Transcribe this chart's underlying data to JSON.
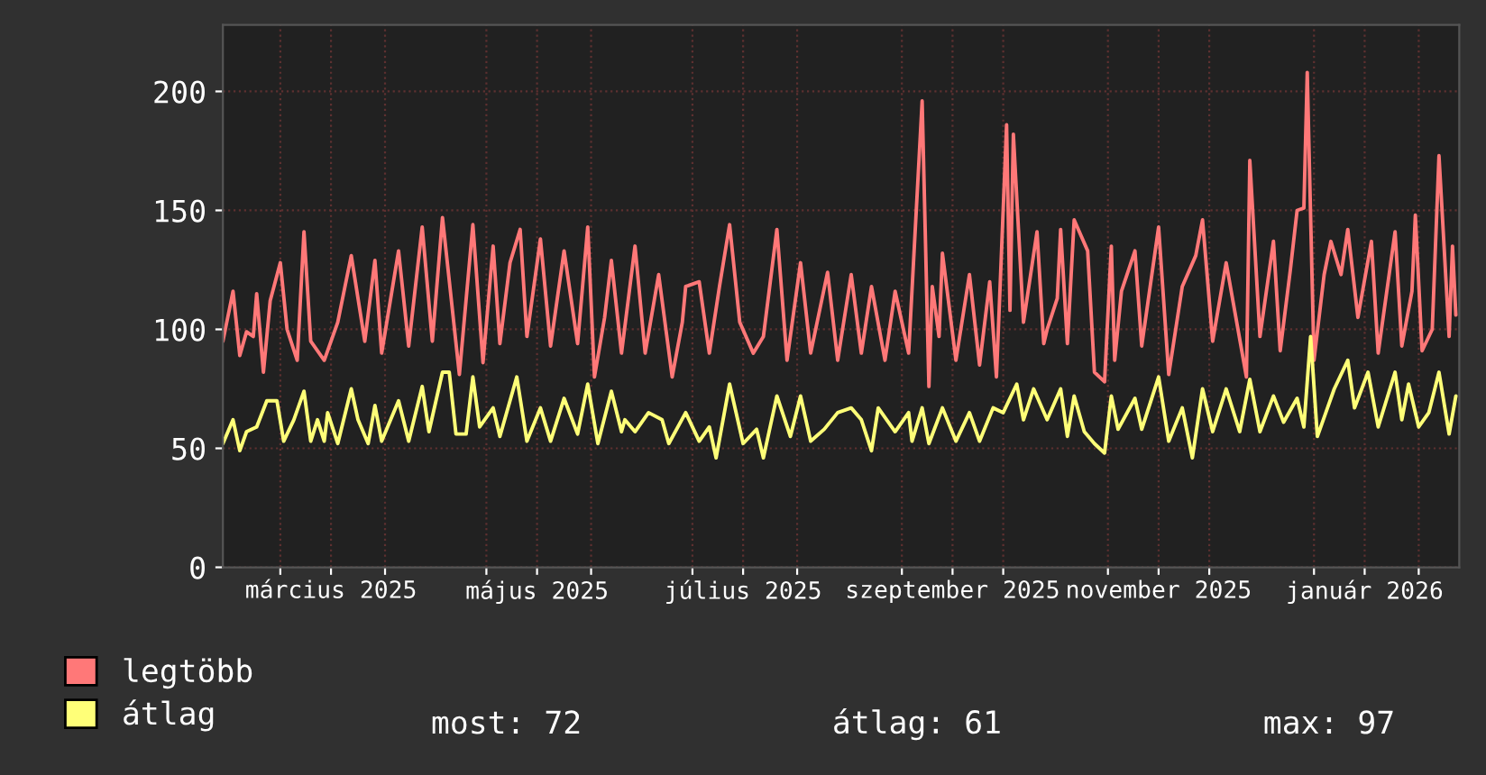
{
  "chart_data": {
    "type": "line",
    "xlim": [
      "2025-02-12",
      "2026-02-13"
    ],
    "ylim": [
      0,
      228
    ],
    "yticks": [
      0,
      50,
      100,
      150,
      200
    ],
    "xticks": [
      {
        "value": "2025-03-01",
        "label": null
      },
      {
        "value": "2025-03-16",
        "label": "március 2025"
      },
      {
        "value": "2025-04-01",
        "label": null
      },
      {
        "value": "2025-05-01",
        "label": null
      },
      {
        "value": "2025-05-16",
        "label": "május 2025"
      },
      {
        "value": "2025-06-01",
        "label": null
      },
      {
        "value": "2025-07-01",
        "label": null
      },
      {
        "value": "2025-07-16",
        "label": "július 2025"
      },
      {
        "value": "2025-08-01",
        "label": null
      },
      {
        "value": "2025-09-01",
        "label": null
      },
      {
        "value": "2025-09-16",
        "label": "szeptember 2025"
      },
      {
        "value": "2025-10-01",
        "label": null
      },
      {
        "value": "2025-11-01",
        "label": null
      },
      {
        "value": "2025-11-16",
        "label": "november 2025"
      },
      {
        "value": "2025-12-01",
        "label": null
      },
      {
        "value": "2026-01-01",
        "label": null
      },
      {
        "value": "2026-01-16",
        "label": "január 2026"
      },
      {
        "value": "2026-02-01",
        "label": null
      }
    ],
    "grid": true,
    "legend": "bottom left",
    "line_style": "solid",
    "annotations": [
      "most: 72",
      "átlag: 61",
      "max: 97"
    ],
    "series": [
      {
        "name": "legtöbb",
        "color": "#ff7878",
        "x": [
          "2025-02-12",
          "2025-02-15",
          "2025-02-17",
          "2025-02-19",
          "2025-02-21",
          "2025-02-22",
          "2025-02-24",
          "2025-02-26",
          "2025-03-01",
          "2025-03-03",
          "2025-03-06",
          "2025-03-08",
          "2025-03-10",
          "2025-03-14",
          "2025-03-18",
          "2025-03-22",
          "2025-03-26",
          "2025-03-29",
          "2025-03-31",
          "2025-04-05",
          "2025-04-08",
          "2025-04-12",
          "2025-04-15",
          "2025-04-18",
          "2025-04-23",
          "2025-04-27",
          "2025-04-30",
          "2025-05-03",
          "2025-05-05",
          "2025-05-08",
          "2025-05-11",
          "2025-05-13",
          "2025-05-17",
          "2025-05-20",
          "2025-05-24",
          "2025-05-28",
          "2025-05-31",
          "2025-06-02",
          "2025-06-05",
          "2025-06-07",
          "2025-06-10",
          "2025-06-14",
          "2025-06-17",
          "2025-06-21",
          "2025-06-25",
          "2025-06-28",
          "2025-06-29",
          "2025-07-03",
          "2025-07-06",
          "2025-07-09",
          "2025-07-12",
          "2025-07-15",
          "2025-07-19",
          "2025-07-22",
          "2025-07-26",
          "2025-07-29",
          "2025-08-02",
          "2025-08-05",
          "2025-08-10",
          "2025-08-13",
          "2025-08-17",
          "2025-08-20",
          "2025-08-23",
          "2025-08-27",
          "2025-08-30",
          "2025-09-03",
          "2025-09-07",
          "2025-09-09",
          "2025-09-10",
          "2025-09-12",
          "2025-09-13",
          "2025-09-17",
          "2025-09-21",
          "2025-09-24",
          "2025-09-27",
          "2025-09-29",
          "2025-10-02",
          "2025-10-03",
          "2025-10-04",
          "2025-10-07",
          "2025-10-11",
          "2025-10-13",
          "2025-10-14",
          "2025-10-17",
          "2025-10-18",
          "2025-10-20",
          "2025-10-22",
          "2025-10-26",
          "2025-10-28",
          "2025-10-31",
          "2025-11-02",
          "2025-11-03",
          "2025-11-05",
          "2025-11-09",
          "2025-11-11",
          "2025-11-16",
          "2025-11-19",
          "2025-11-23",
          "2025-11-27",
          "2025-11-29",
          "2025-12-02",
          "2025-12-06",
          "2025-12-12",
          "2025-12-13",
          "2025-12-16",
          "2025-12-20",
          "2025-12-22",
          "2025-12-25",
          "2025-12-27",
          "2025-12-29",
          "2025-12-30",
          "2026-01-01",
          "2026-01-04",
          "2026-01-06",
          "2026-01-09",
          "2026-01-11",
          "2026-01-14",
          "2026-01-18",
          "2026-01-20",
          "2026-01-25",
          "2026-01-27",
          "2026-01-30",
          "2026-01-31",
          "2026-02-02",
          "2026-02-05",
          "2026-02-07",
          "2026-02-10",
          "2026-02-11",
          "2026-02-12"
        ],
        "values": [
          95,
          116,
          89,
          99,
          97,
          115,
          82,
          112,
          128,
          100,
          87,
          141,
          95,
          87,
          103,
          131,
          95,
          129,
          90,
          133,
          93,
          143,
          95,
          147,
          81,
          144,
          86,
          135,
          94,
          128,
          142,
          97,
          138,
          93,
          133,
          94,
          143,
          80,
          105,
          129,
          90,
          135,
          90,
          123,
          80,
          103,
          118,
          120,
          90,
          118,
          144,
          103,
          90,
          97,
          142,
          87,
          128,
          90,
          124,
          87,
          123,
          90,
          118,
          87,
          116,
          90,
          196,
          76,
          118,
          97,
          132,
          87,
          123,
          85,
          120,
          80,
          186,
          108,
          182,
          103,
          141,
          94,
          100,
          113,
          142,
          94,
          146,
          133,
          82,
          78,
          135,
          87,
          116,
          133,
          93,
          143,
          81,
          118,
          131,
          146,
          95,
          128,
          80,
          171,
          97,
          137,
          91,
          125,
          150,
          151,
          208,
          87,
          123,
          137,
          123,
          142,
          105,
          137,
          90,
          141,
          93,
          116,
          148,
          91,
          100,
          173,
          97,
          135,
          106
        ]
      },
      {
        "name": "átlag",
        "color": "#ffff78",
        "x": [
          "2025-02-12",
          "2025-02-15",
          "2025-02-17",
          "2025-02-19",
          "2025-02-22",
          "2025-02-25",
          "2025-02-28",
          "2025-03-02",
          "2025-03-05",
          "2025-03-08",
          "2025-03-10",
          "2025-03-12",
          "2025-03-14",
          "2025-03-15",
          "2025-03-18",
          "2025-03-22",
          "2025-03-24",
          "2025-03-27",
          "2025-03-29",
          "2025-03-31",
          "2025-04-05",
          "2025-04-08",
          "2025-04-12",
          "2025-04-14",
          "2025-04-18",
          "2025-04-20",
          "2025-04-22",
          "2025-04-25",
          "2025-04-27",
          "2025-04-29",
          "2025-05-03",
          "2025-05-05",
          "2025-05-10",
          "2025-05-13",
          "2025-05-17",
          "2025-05-20",
          "2025-05-24",
          "2025-05-28",
          "2025-05-31",
          "2025-06-03",
          "2025-06-07",
          "2025-06-10",
          "2025-06-11",
          "2025-06-14",
          "2025-06-18",
          "2025-06-22",
          "2025-06-24",
          "2025-06-29",
          "2025-07-03",
          "2025-07-06",
          "2025-07-08",
          "2025-07-12",
          "2025-07-16",
          "2025-07-20",
          "2025-07-22",
          "2025-07-26",
          "2025-07-30",
          "2025-08-02",
          "2025-08-05",
          "2025-08-09",
          "2025-08-13",
          "2025-08-17",
          "2025-08-20",
          "2025-08-23",
          "2025-08-25",
          "2025-08-30",
          "2025-09-03",
          "2025-09-04",
          "2025-09-07",
          "2025-09-09",
          "2025-09-13",
          "2025-09-17",
          "2025-09-21",
          "2025-09-24",
          "2025-09-28",
          "2025-10-01",
          "2025-10-05",
          "2025-10-07",
          "2025-10-10",
          "2025-10-14",
          "2025-10-18",
          "2025-10-20",
          "2025-10-22",
          "2025-10-25",
          "2025-10-28",
          "2025-10-31",
          "2025-11-02",
          "2025-11-04",
          "2025-11-09",
          "2025-11-11",
          "2025-11-16",
          "2025-11-19",
          "2025-11-23",
          "2025-11-26",
          "2025-11-29",
          "2025-12-02",
          "2025-12-06",
          "2025-12-10",
          "2025-12-13",
          "2025-12-16",
          "2025-12-20",
          "2025-12-23",
          "2025-12-27",
          "2025-12-29",
          "2025-12-31",
          "2026-01-02",
          "2026-01-05",
          "2026-01-07",
          "2026-01-11",
          "2026-01-13",
          "2026-01-17",
          "2026-01-20",
          "2026-01-25",
          "2026-01-27",
          "2026-01-29",
          "2026-02-01",
          "2026-02-04",
          "2026-02-07",
          "2026-02-10",
          "2026-02-12"
        ],
        "values": [
          52,
          62,
          49,
          57,
          59,
          70,
          70,
          53,
          62,
          74,
          53,
          62,
          53,
          65,
          52,
          75,
          62,
          52,
          68,
          53,
          70,
          53,
          76,
          57,
          82,
          82,
          56,
          56,
          80,
          59,
          67,
          55,
          80,
          53,
          67,
          53,
          71,
          56,
          77,
          52,
          74,
          57,
          62,
          57,
          65,
          62,
          52,
          65,
          53,
          59,
          46,
          77,
          52,
          58,
          46,
          72,
          55,
          72,
          53,
          58,
          65,
          67,
          62,
          49,
          67,
          57,
          65,
          53,
          67,
          52,
          67,
          53,
          65,
          53,
          67,
          65,
          77,
          62,
          75,
          62,
          75,
          55,
          72,
          57,
          52,
          48,
          72,
          58,
          71,
          58,
          80,
          53,
          67,
          46,
          75,
          57,
          75,
          57,
          79,
          57,
          72,
          61,
          71,
          59,
          97,
          55,
          67,
          75,
          87,
          67,
          82,
          59,
          82,
          62,
          77,
          59,
          65,
          82,
          56,
          72
        ]
      }
    ]
  }
}
